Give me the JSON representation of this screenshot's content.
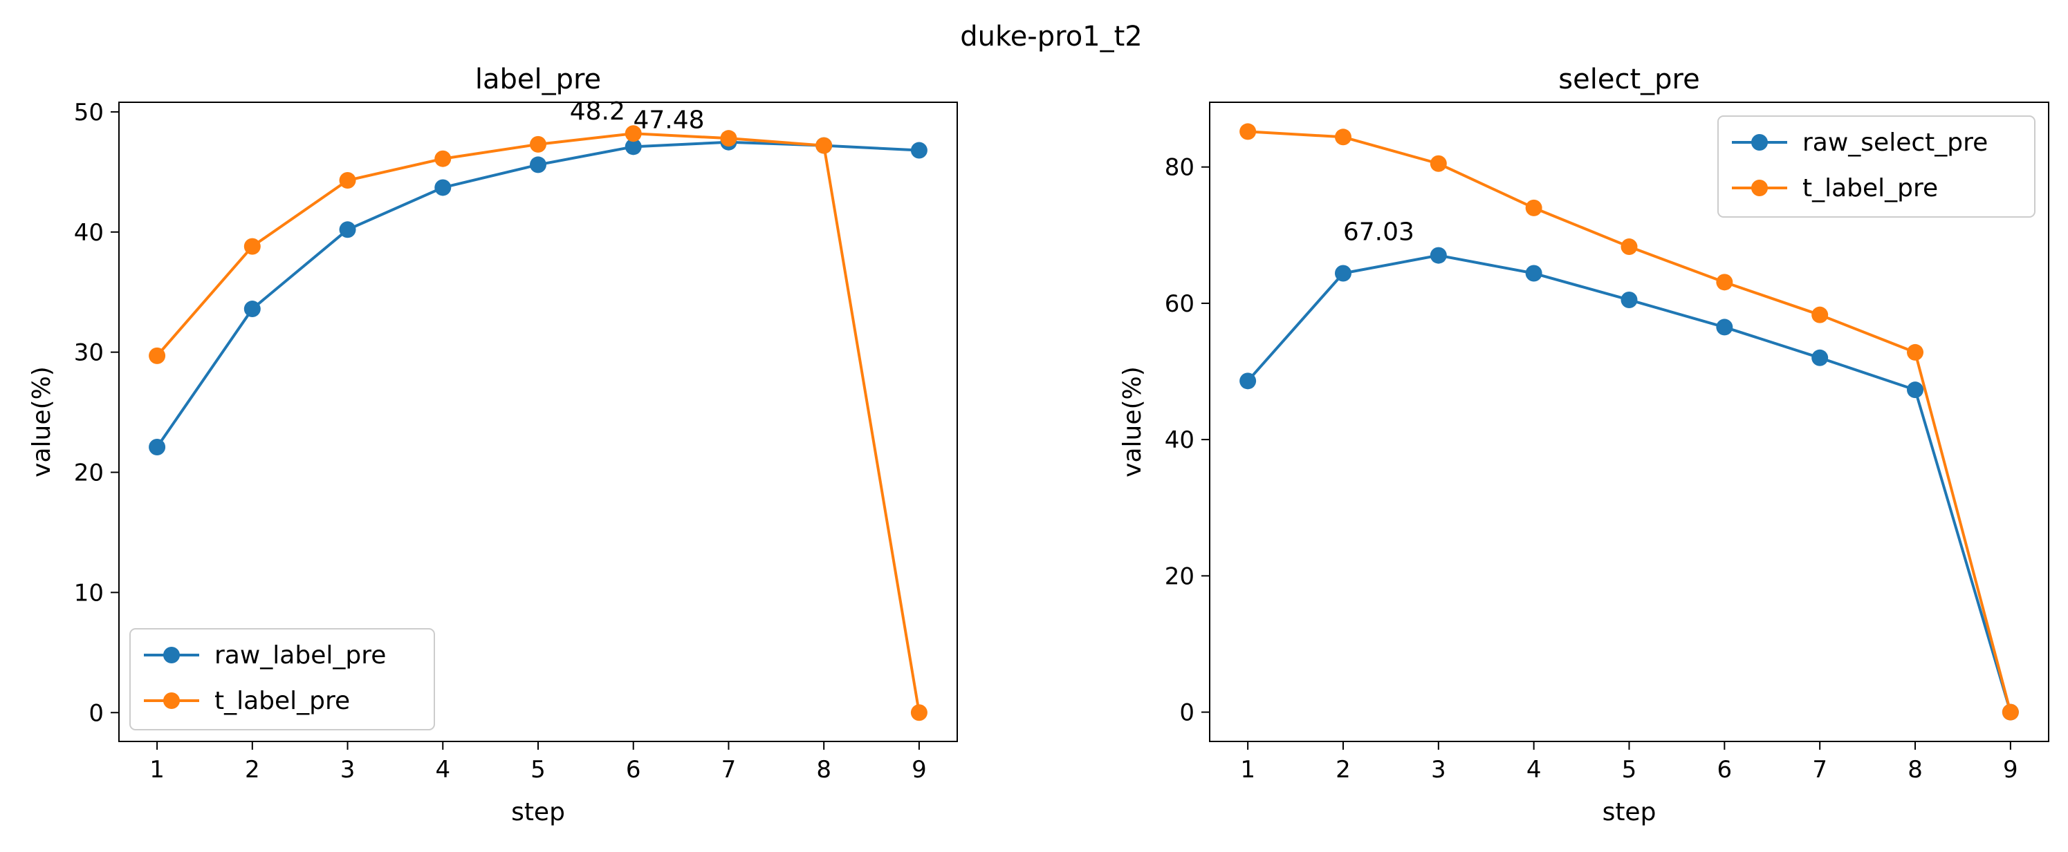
{
  "suptitle": "duke-pro1_t2",
  "colors": {
    "series_1": "#1f77b4",
    "series_2": "#ff7f0e"
  },
  "chart_data": [
    {
      "type": "line",
      "title": "label_pre",
      "xlabel": "step",
      "ylabel": "value(%)",
      "x": [
        1,
        2,
        3,
        4,
        5,
        6,
        7,
        8,
        9
      ],
      "xlim": [
        0.6,
        9.4
      ],
      "ylim": [
        -2.4,
        50.8
      ],
      "yticks": [
        0,
        10,
        20,
        30,
        40,
        50
      ],
      "grid": false,
      "legend_position": "lower-left",
      "series": [
        {
          "name": "raw_label_pre",
          "values": [
            22.1,
            33.6,
            40.2,
            43.7,
            45.6,
            47.1,
            47.48,
            47.2,
            46.8
          ]
        },
        {
          "name": "t_label_pre",
          "values": [
            29.7,
            38.8,
            44.3,
            46.1,
            47.3,
            48.2,
            47.8,
            47.2,
            0.0
          ]
        }
      ],
      "annotations": [
        {
          "text": "48.2",
          "x": 6,
          "y": 48.2
        },
        {
          "text": "47.48",
          "x": 7,
          "y": 47.48
        }
      ]
    },
    {
      "type": "line",
      "title": "select_pre",
      "xlabel": "step",
      "ylabel": "value(%)",
      "x": [
        1,
        2,
        3,
        4,
        5,
        6,
        7,
        8,
        9
      ],
      "xlim": [
        0.6,
        9.4
      ],
      "ylim": [
        -4.3,
        89.5
      ],
      "yticks": [
        0,
        20,
        40,
        60,
        80
      ],
      "grid": false,
      "legend_position": "upper-right",
      "series": [
        {
          "name": "raw_select_pre",
          "values": [
            48.6,
            64.4,
            67.03,
            64.4,
            60.5,
            56.5,
            52.0,
            47.3,
            0.0
          ]
        },
        {
          "name": "t_label_pre",
          "values": [
            85.2,
            84.4,
            80.5,
            74.0,
            68.3,
            63.1,
            58.3,
            52.8,
            0.0
          ]
        }
      ],
      "annotations": [
        {
          "text": "67.03",
          "x": 3,
          "y": 67.03
        }
      ]
    }
  ]
}
